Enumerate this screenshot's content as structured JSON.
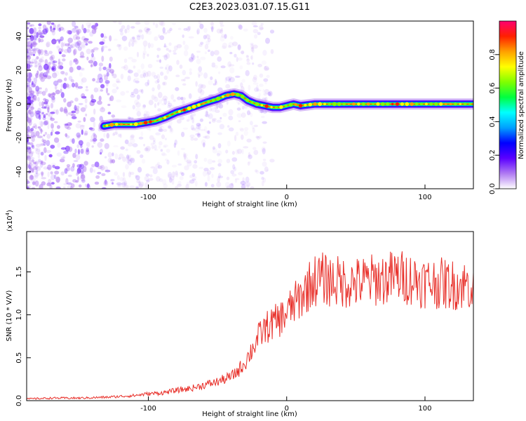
{
  "figure_title": "C2E3.2023.031.07.15.G11",
  "chart_data": [
    {
      "type": "heatmap",
      "name": "spectrogram",
      "xlabel": "Height of straight line (km)",
      "ylabel": "Frequency (Hz)",
      "xlim": [
        -188,
        135
      ],
      "ylim": [
        -50,
        49
      ],
      "xticks": [
        -100,
        0,
        100
      ],
      "yticks": [
        -40,
        -20,
        0,
        20,
        40
      ],
      "ridge": {
        "x": [
          -132,
          -125,
          -118,
          -110,
          -102,
          -95,
          -88,
          -80,
          -72,
          -65,
          -58,
          -50,
          -44,
          -38,
          -33,
          -28,
          -22,
          -16,
          -10,
          -5,
          0,
          5,
          10,
          20,
          30,
          40,
          50,
          70,
          90,
          110,
          135
        ],
        "y": [
          -13,
          -12,
          -12,
          -12,
          -11,
          -10,
          -8,
          -5,
          -3,
          -1,
          1,
          3,
          5,
          6,
          5,
          2,
          0,
          -1,
          -2,
          -2,
          -1,
          0,
          -1,
          0,
          0,
          0,
          0,
          0,
          0,
          0,
          0
        ]
      },
      "colorbar": {
        "label": "Normalized spectral amplitude",
        "range": [
          0,
          1
        ],
        "ticks": [
          0.0,
          0.2,
          0.4,
          0.6,
          0.8
        ],
        "tick_labels": [
          "0.0",
          "0.2",
          "0.4",
          "0.6",
          "0.8"
        ],
        "colors": [
          "#ffffff",
          "#b07af2",
          "#5a00ff",
          "#0000ff",
          "#00a0ff",
          "#00ffff",
          "#00ff40",
          "#80ff00",
          "#ffff00",
          "#ffa000",
          "#ff2000",
          "#ff0070"
        ]
      },
      "grid": false
    },
    {
      "type": "line",
      "name": "snr",
      "xlabel": "Height of straight line (km)",
      "ylabel": "SNR (10 * V/V)",
      "y_multiplier_label": "(x10",
      "y_multiplier_exp": "4",
      "y_multiplier_close": ")",
      "xlim": [
        -188,
        135
      ],
      "ylim": [
        0,
        1.97
      ],
      "xticks": [
        -100,
        0,
        100
      ],
      "yticks": [
        0.0,
        0.5,
        1.0,
        1.5
      ],
      "ytick_labels": [
        "0.0",
        "0.5",
        "1.0",
        "1.5"
      ],
      "color": "#e8302a",
      "grid": false,
      "series": [
        {
          "x": [
            -188,
            -170,
            -150,
            -130,
            -120,
            -110,
            -100,
            -90,
            -80,
            -70,
            -60,
            -50,
            -40,
            -35,
            -30,
            -25,
            -20,
            -15,
            -10,
            -5,
            0,
            5,
            10,
            15,
            20,
            25,
            30,
            40,
            50,
            60,
            70,
            80,
            90,
            100,
            110,
            120,
            135
          ],
          "y": [
            0.02,
            0.03,
            0.03,
            0.04,
            0.05,
            0.06,
            0.08,
            0.09,
            0.12,
            0.14,
            0.18,
            0.22,
            0.28,
            0.35,
            0.45,
            0.6,
            0.75,
            0.85,
            0.9,
            0.95,
            1.02,
            1.12,
            1.2,
            1.32,
            1.4,
            1.42,
            1.4,
            1.38,
            1.37,
            1.4,
            1.42,
            1.45,
            1.42,
            1.38,
            1.37,
            1.35,
            1.35
          ]
        }
      ]
    }
  ]
}
